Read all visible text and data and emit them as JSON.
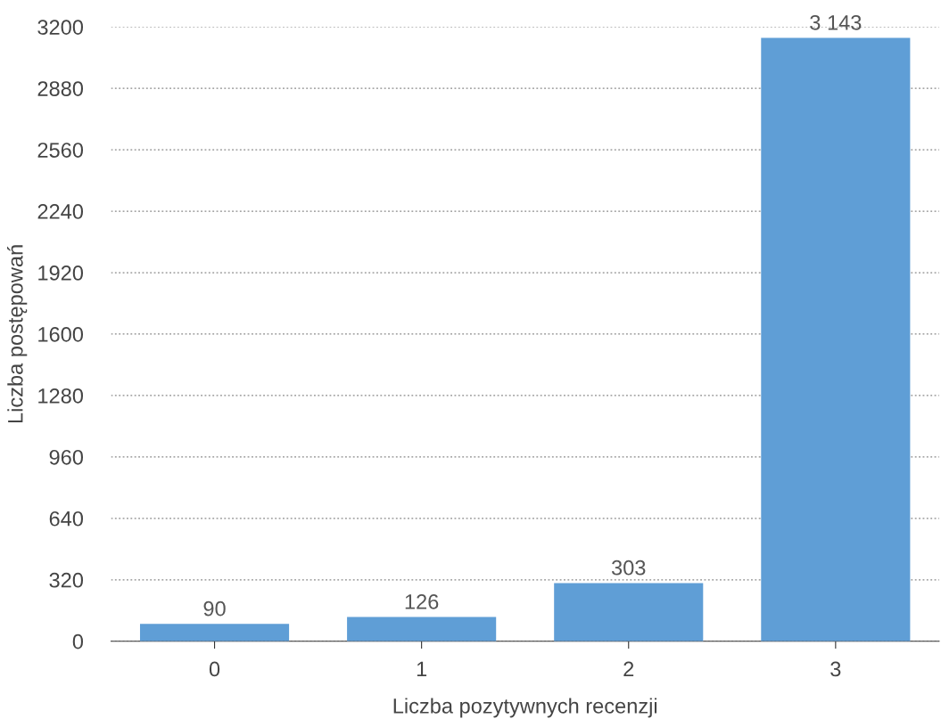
{
  "chart_data": {
    "type": "bar",
    "xlabel": "Liczba pozytywnych recenzji",
    "ylabel": "Liczba postępowań",
    "categories": [
      "0",
      "1",
      "2",
      "3"
    ],
    "values": [
      90,
      126,
      303,
      3143
    ],
    "value_labels": [
      "90",
      "126",
      "303",
      "3 143"
    ],
    "color": "#5f9ed6",
    "ylim": [
      0,
      3200
    ],
    "yticks": [
      0,
      320,
      640,
      960,
      1280,
      1600,
      1920,
      2240,
      2560,
      2880,
      3200
    ],
    "grid": "y",
    "legend": false
  }
}
